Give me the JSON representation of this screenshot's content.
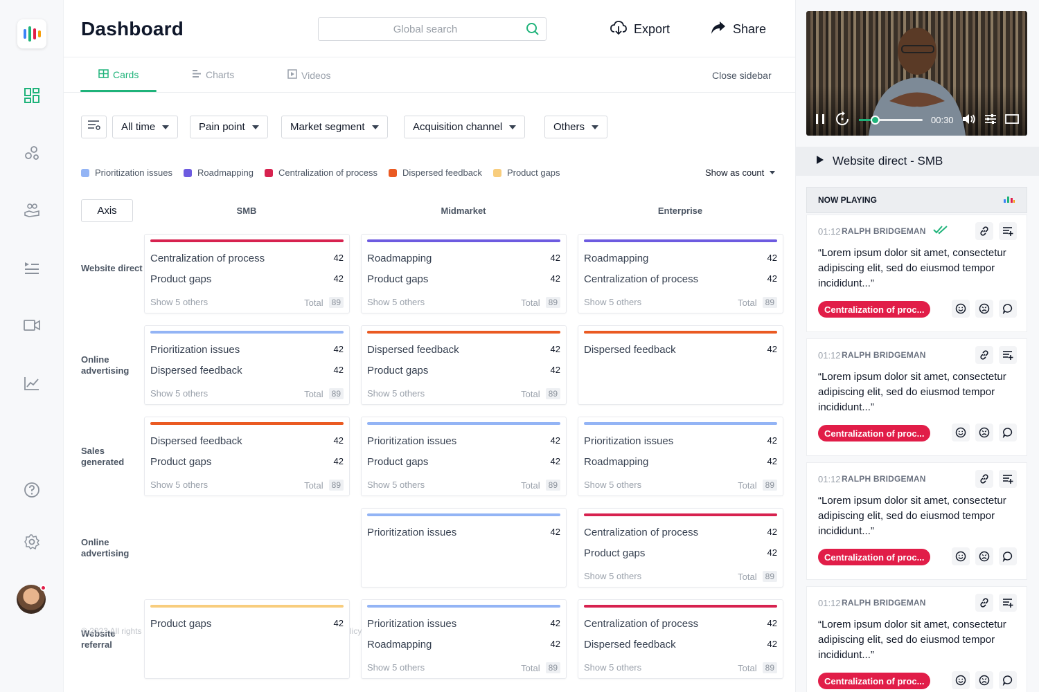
{
  "header": {
    "title": "Dashboard",
    "search_placeholder": "Global search",
    "export_label": "Export",
    "share_label": "Share"
  },
  "tabs": [
    {
      "label": "Cards",
      "active": true,
      "icon": "grid-icon"
    },
    {
      "label": "Charts",
      "active": false,
      "icon": "bars-icon"
    },
    {
      "label": "Videos",
      "active": false,
      "icon": "play-square-icon"
    }
  ],
  "close_sidebar": "Close sidebar",
  "filters": [
    "All time",
    "Pain point",
    "Market segment",
    "Acquisition channel",
    "Others"
  ],
  "legend": [
    {
      "label": "Prioritization issues",
      "color": "#93b4f5"
    },
    {
      "label": "Roadmapping",
      "color": "#6d5be0"
    },
    {
      "label": "Centralization of process",
      "color": "#d7224f"
    },
    {
      "label": "Dispersed feedback",
      "color": "#ea5a22"
    },
    {
      "label": "Product gaps",
      "color": "#f8cd7d"
    }
  ],
  "show_as": "Show as count",
  "axis_label": "Axis",
  "columns": [
    "SMB",
    "Midmarket",
    "Enterprise"
  ],
  "rows": [
    "Website direct",
    "Online advertising",
    "Sales generated",
    "Online advertising",
    "Website referral"
  ],
  "card_text": {
    "show_others": "Show 5 others",
    "total_label": "Total",
    "total_value": "89"
  },
  "cards": {
    "r0c0": {
      "color": "#d7224f",
      "items": [
        {
          "label": "Centralization of process",
          "value": "42"
        },
        {
          "label": "Product gaps",
          "value": "42"
        }
      ]
    },
    "r0c1": {
      "color": "#6d5be0",
      "items": [
        {
          "label": "Roadmapping",
          "value": "42"
        },
        {
          "label": "Product gaps",
          "value": "42"
        }
      ]
    },
    "r0c2": {
      "color": "#6d5be0",
      "items": [
        {
          "label": "Roadmapping",
          "value": "42"
        },
        {
          "label": "Centralization of process",
          "value": "42"
        }
      ]
    },
    "r1c0": {
      "color": "#93b4f5",
      "items": [
        {
          "label": "Prioritization issues",
          "value": "42"
        },
        {
          "label": "Dispersed feedback",
          "value": "42"
        }
      ]
    },
    "r1c1": {
      "color": "#ea5a22",
      "items": [
        {
          "label": "Dispersed feedback",
          "value": "42"
        },
        {
          "label": "Product gaps",
          "value": "42"
        }
      ]
    },
    "r1c2": {
      "color": "#ea5a22",
      "items": [
        {
          "label": "Dispersed feedback",
          "value": "42"
        }
      ]
    },
    "r2c0": {
      "color": "#ea5a22",
      "items": [
        {
          "label": "Dispersed feedback",
          "value": "42"
        },
        {
          "label": "Product gaps",
          "value": "42"
        }
      ]
    },
    "r2c1": {
      "color": "#93b4f5",
      "items": [
        {
          "label": "Prioritization issues",
          "value": "42"
        },
        {
          "label": "Product gaps",
          "value": "42"
        }
      ]
    },
    "r2c2": {
      "color": "#93b4f5",
      "items": [
        {
          "label": "Prioritization issues",
          "value": "42"
        },
        {
          "label": "Roadmapping",
          "value": "42"
        }
      ]
    },
    "r3c1": {
      "color": "#93b4f5",
      "items": [
        {
          "label": "Prioritization issues",
          "value": "42"
        }
      ]
    },
    "r3c2": {
      "color": "#d7224f",
      "items": [
        {
          "label": "Centralization of process",
          "value": "42"
        },
        {
          "label": "Product gaps",
          "value": "42"
        }
      ]
    },
    "r4c0": {
      "color": "#f8cd7d",
      "items": [
        {
          "label": "Product gaps",
          "value": "42"
        }
      ]
    },
    "r4c1": {
      "color": "#93b4f5",
      "items": [
        {
          "label": "Prioritization issues",
          "value": "42"
        },
        {
          "label": "Roadmapping",
          "value": "42"
        }
      ]
    },
    "r4c2": {
      "color": "#d7224f",
      "items": [
        {
          "label": "Centralization of process",
          "value": "42"
        },
        {
          "label": "Dispersed feedback",
          "value": "42"
        }
      ]
    }
  },
  "footer_ghost": {
    "left": "© 2023 All rights",
    "right": "licy"
  },
  "video": {
    "time": "00:30",
    "progress_fraction": 0.25
  },
  "playing_title": "Website direct - SMB",
  "now_playing_label": "NOW PLAYING",
  "clips": [
    {
      "time": "01:12",
      "author": "RALPH BRIDGEMAN",
      "verified": true,
      "quote": "“Lorem ipsum dolor sit amet, consectetur adipiscing elit, sed do eiusmod tempor incididunt...”",
      "tag": "Centralization of proc..."
    },
    {
      "time": "01:12",
      "author": "RALPH BRIDGEMAN",
      "verified": false,
      "quote": "“Lorem ipsum dolor sit amet, consectetur adipiscing elit, sed do eiusmod tempor incididunt...”",
      "tag": "Centralization of proc..."
    },
    {
      "time": "01:12",
      "author": "RALPH BRIDGEMAN",
      "verified": false,
      "quote": "“Lorem ipsum dolor sit amet, consectetur adipiscing elit, sed do eiusmod tempor incididunt...”",
      "tag": "Centralization of proc..."
    },
    {
      "time": "01:12",
      "author": "RALPH BRIDGEMAN",
      "verified": false,
      "quote": "“Lorem ipsum dolor sit amet, consectetur adipiscing elit, sed do eiusmod tempor incididunt...”",
      "tag": "Centralization of proc..."
    }
  ],
  "colors": {
    "accent": "#1fb37a",
    "tag": "#e11d48"
  }
}
